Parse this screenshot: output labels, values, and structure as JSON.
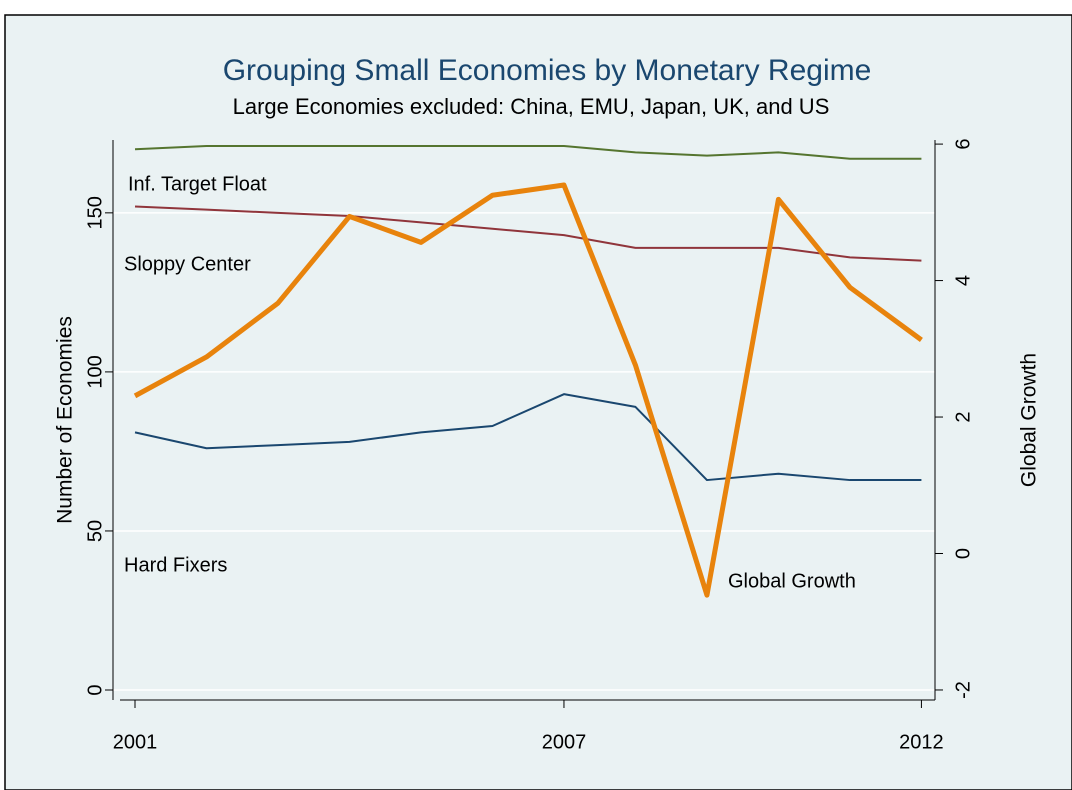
{
  "chart_data": {
    "type": "line",
    "title": "Grouping Small Economies by Monetary Regime",
    "subtitle": "Large Economies excluded: China, EMU, Japan, UK, and US",
    "y_label": "Number of Economies",
    "y2_label": "Global Growth",
    "x": [
      2001,
      2002,
      2003,
      2004,
      2005,
      2006,
      2007,
      2008,
      2009,
      2010,
      2011,
      2012
    ],
    "xlim": [
      2000.79,
      2012.19
    ],
    "xticks": [
      2001,
      2007,
      2012
    ],
    "ylim": [
      -3.14,
      172.9
    ],
    "yticks": [
      0,
      50,
      100,
      150
    ],
    "y2lim": [
      -2.147,
      6.06
    ],
    "y2ticks": [
      -2,
      0,
      2,
      4,
      6
    ],
    "grid": true,
    "series": [
      {
        "name": "Inf. Target Float",
        "color": "#55752f",
        "values": [
          170,
          171,
          171,
          171,
          171,
          171,
          171,
          169,
          168,
          169,
          167,
          167
        ]
      },
      {
        "name": "Sloppy Center",
        "color": "#90353b",
        "values": [
          152,
          151,
          150,
          149,
          147,
          145,
          143,
          139,
          139,
          139,
          136,
          135
        ]
      },
      {
        "name": "Hard Fixers",
        "color": "#1a476f",
        "values": [
          81,
          76,
          77,
          78,
          81,
          83,
          93,
          89,
          66,
          68,
          66,
          66
        ]
      },
      {
        "name": "Global Growth",
        "color": "#e8830c",
        "axis": "y2",
        "values": [
          2.31,
          2.88,
          3.67,
          4.94,
          4.56,
          5.25,
          5.4,
          2.76,
          -0.61,
          5.19,
          3.9,
          3.13
        ]
      }
    ]
  }
}
